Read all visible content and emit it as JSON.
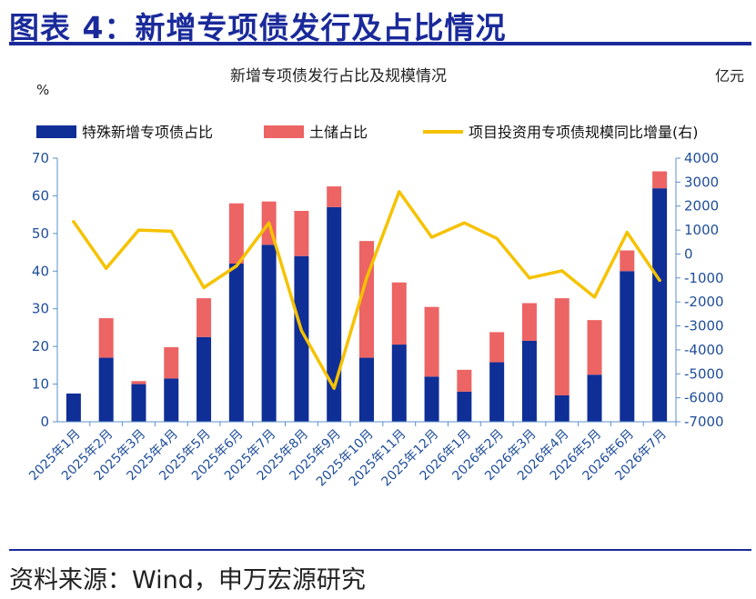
{
  "figure_title": "图表 4：新增专项债发行及占比情况",
  "source": "资料来源：Wind，申万宏源研究",
  "chart_data": {
    "type": "bar",
    "title": "新增专项债发行占比及规模情况",
    "ylabel_left": "%",
    "ylabel_right": "亿元",
    "ylim_left": [
      0,
      70
    ],
    "yticks_left": [
      0,
      10,
      20,
      30,
      40,
      50,
      60,
      70
    ],
    "ylim_right": [
      -7000,
      4000
    ],
    "yticks_right": [
      -7000,
      -6000,
      -5000,
      -4000,
      -3000,
      -2000,
      -1000,
      0,
      1000,
      2000,
      3000,
      4000
    ],
    "legend_position": "top",
    "grid": false,
    "categories": [
      "2025年1月",
      "2025年2月",
      "2025年3月",
      "2025年4月",
      "2025年5月",
      "2025年6月",
      "2025年7月",
      "2025年8月",
      "2025年9月",
      "2025年10月",
      "2025年11月",
      "2025年12月",
      "2026年1月",
      "2026年2月",
      "2026年3月",
      "2026年4月",
      "2026年5月",
      "2026年6月",
      "2026年7月"
    ],
    "series": [
      {
        "name": "特殊新增专项债占比",
        "type": "bar",
        "stack": "share",
        "axis": "left",
        "color": "#0f2e96",
        "values": [
          7.5,
          17,
          10,
          11.5,
          22.5,
          42,
          47,
          44,
          57,
          17,
          20.5,
          12,
          8,
          15.8,
          21.5,
          7,
          12.5,
          40,
          62
        ]
      },
      {
        "name": "土储占比",
        "type": "bar",
        "stack": "share",
        "axis": "left",
        "color": "#ec6464",
        "values": [
          0,
          10.5,
          0.8,
          8.3,
          10.3,
          16,
          11.5,
          12,
          5.5,
          31,
          16.5,
          18.5,
          5.8,
          8,
          10,
          25.8,
          14.5,
          5.5,
          4.5
        ]
      },
      {
        "name": "项目投资用专项债规模同比增量(右)",
        "type": "line",
        "axis": "right",
        "color": "#f5c200",
        "values": [
          1350,
          -600,
          1000,
          950,
          -1400,
          -500,
          1300,
          -3200,
          -5600,
          -1000,
          2600,
          700,
          1300,
          650,
          -1000,
          -700,
          -1800,
          900,
          -1100
        ]
      }
    ]
  }
}
